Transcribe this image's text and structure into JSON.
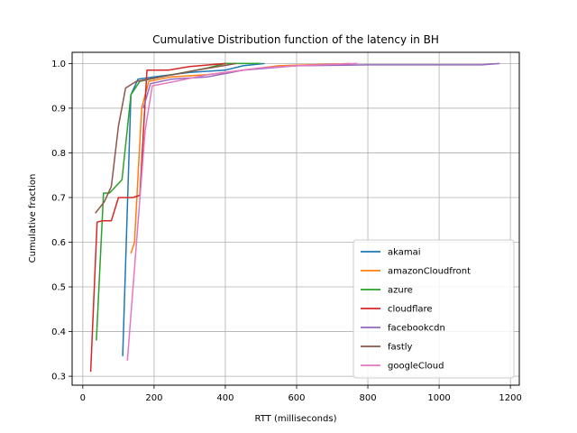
{
  "chart_data": {
    "type": "line",
    "title": "Cumulative Distribution function of the latency in BH",
    "xlabel": "RTT (milliseconds)",
    "ylabel": "Cumulative fraction",
    "xlim": [
      -30,
      1225
    ],
    "ylim": [
      0.28,
      1.025
    ],
    "xticks": [
      0,
      200,
      400,
      600,
      800,
      1000,
      1200
    ],
    "yticks": [
      0.3,
      0.4,
      0.5,
      0.6,
      0.7,
      0.8,
      0.9,
      1.0
    ],
    "grid": true,
    "legend_position": "bottom-right",
    "series": [
      {
        "name": "akamai",
        "color": "#1f77b4",
        "points": [
          [
            112,
            0.345
          ],
          [
            135,
            0.93
          ],
          [
            155,
            0.965
          ],
          [
            200,
            0.97
          ],
          [
            300,
            0.98
          ],
          [
            400,
            0.985
          ],
          [
            450,
            0.995
          ],
          [
            510,
            1.0
          ]
        ]
      },
      {
        "name": "amazonCloudfront",
        "color": "#ff7f0e",
        "points": [
          [
            135,
            0.575
          ],
          [
            145,
            0.6
          ],
          [
            165,
            0.9
          ],
          [
            185,
            0.96
          ],
          [
            250,
            0.97
          ],
          [
            350,
            0.975
          ],
          [
            450,
            0.985
          ],
          [
            550,
            0.995
          ],
          [
            750,
            1.0
          ]
        ]
      },
      {
        "name": "azure",
        "color": "#2ca02c",
        "points": [
          [
            38,
            0.38
          ],
          [
            58,
            0.71
          ],
          [
            75,
            0.71
          ],
          [
            110,
            0.74
          ],
          [
            135,
            0.93
          ],
          [
            160,
            0.96
          ],
          [
            250,
            0.975
          ],
          [
            350,
            0.99
          ],
          [
            400,
            1.0
          ],
          [
            500,
            1.0
          ]
        ]
      },
      {
        "name": "cloudflare",
        "color": "#d62728",
        "points": [
          [
            22,
            0.31
          ],
          [
            40,
            0.645
          ],
          [
            55,
            0.648
          ],
          [
            80,
            0.648
          ],
          [
            100,
            0.7
          ],
          [
            140,
            0.7
          ],
          [
            160,
            0.705
          ],
          [
            180,
            0.985
          ],
          [
            240,
            0.985
          ],
          [
            300,
            0.993
          ],
          [
            400,
            1.0
          ]
        ]
      },
      {
        "name": "facebookcdn",
        "color": "#9467bd",
        "points": [
          [
            170,
            0.9
          ],
          [
            190,
            0.955
          ],
          [
            250,
            0.965
          ],
          [
            350,
            0.97
          ],
          [
            450,
            0.985
          ],
          [
            600,
            0.995
          ],
          [
            800,
            0.997
          ],
          [
            1000,
            0.997
          ],
          [
            1120,
            0.997
          ],
          [
            1170,
            1.0
          ]
        ]
      },
      {
        "name": "fastly",
        "color": "#8c564b",
        "points": [
          [
            35,
            0.665
          ],
          [
            60,
            0.69
          ],
          [
            80,
            0.725
          ],
          [
            100,
            0.86
          ],
          [
            120,
            0.945
          ],
          [
            150,
            0.96
          ],
          [
            220,
            0.97
          ],
          [
            320,
            0.985
          ],
          [
            430,
            1.0
          ]
        ]
      },
      {
        "name": "googleCloud",
        "color": "#e377c2",
        "points": [
          [
            125,
            0.335
          ],
          [
            175,
            0.85
          ],
          [
            195,
            0.95
          ],
          [
            260,
            0.96
          ],
          [
            350,
            0.975
          ],
          [
            500,
            0.99
          ],
          [
            600,
            0.995
          ],
          [
            700,
            0.998
          ],
          [
            770,
            1.0
          ]
        ]
      }
    ]
  }
}
